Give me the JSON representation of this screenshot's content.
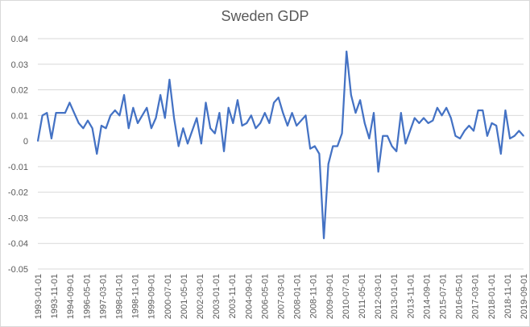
{
  "chart_data": {
    "type": "line",
    "title": "Sweden GDP",
    "xlabel": "",
    "ylabel": "",
    "ylim": [
      -0.05,
      0.04
    ],
    "y_ticks": [
      "0.04",
      "0.03",
      "0.02",
      "0.01",
      "0",
      "-0.01",
      "-0.02",
      "-0.03",
      "-0.04",
      "-0.05"
    ],
    "y_tick_values": [
      0.04,
      0.03,
      0.02,
      0.01,
      0,
      -0.01,
      -0.02,
      -0.03,
      -0.04,
      -0.05
    ],
    "x_tick_labels": [
      "1993-01-01",
      "1993-11-01",
      "1994-09-01",
      "1996-05-01",
      "1997-03-01",
      "1998-01-01",
      "1998-11-01",
      "1999-09-01",
      "2000-07-01",
      "2001-05-01",
      "2002-03-01",
      "2003-01-01",
      "2003-11-01",
      "2004-09-01",
      "2006-05-01",
      "2007-03-01",
      "2008-01-01",
      "2008-11-01",
      "2009-09-01",
      "2010-07-01",
      "2011-05-01",
      "2012-03-01",
      "2013-01-01",
      "2013-11-01",
      "2014-09-01",
      "2015-07-01",
      "2016-05-01",
      "2017-03-01",
      "2018-01-01",
      "2018-11-01",
      "2019-09-01"
    ],
    "grid": true,
    "line_color": "#4472c4",
    "series": [
      {
        "values": [
          0.0,
          0.01,
          0.011,
          0.001,
          0.011,
          0.011,
          0.011,
          0.015,
          0.011,
          0.007,
          0.005,
          0.008,
          0.005,
          -0.005,
          0.006,
          0.005,
          0.01,
          0.012,
          0.01,
          0.018,
          0.005,
          0.013,
          0.007,
          0.01,
          0.013,
          0.005,
          0.009,
          0.018,
          0.009,
          0.024,
          0.009,
          -0.002,
          0.005,
          -0.001,
          0.004,
          0.009,
          -0.001,
          0.015,
          0.005,
          0.003,
          0.011,
          -0.004,
          0.013,
          0.007,
          0.016,
          0.006,
          0.007,
          0.01,
          0.005,
          0.007,
          0.011,
          0.007,
          0.015,
          0.017,
          0.011,
          0.006,
          0.011,
          0.006,
          0.008,
          0.01,
          -0.003,
          -0.002,
          -0.005,
          -0.038,
          -0.009,
          -0.002,
          -0.002,
          0.003,
          0.035,
          0.018,
          0.011,
          0.016,
          0.007,
          0.001,
          0.011,
          -0.012,
          0.002,
          0.002,
          -0.002,
          -0.004,
          0.011,
          -0.001,
          0.004,
          0.009,
          0.007,
          0.009,
          0.007,
          0.008,
          0.013,
          0.01,
          0.013,
          0.009,
          0.002,
          0.001,
          0.004,
          0.006,
          0.004,
          0.012,
          0.012,
          0.002,
          0.007,
          0.006,
          -0.005,
          0.012,
          0.001,
          0.002,
          0.004,
          0.002
        ]
      }
    ]
  }
}
